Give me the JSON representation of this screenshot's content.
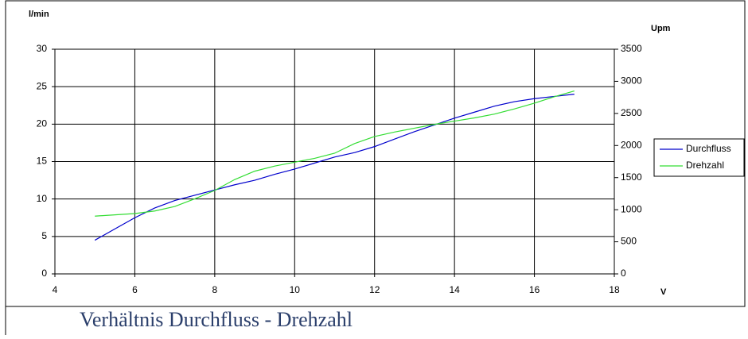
{
  "chart_data": {
    "type": "line",
    "title": "Verhältnis Durchfluss - Drehzahl",
    "y_label": "l/min",
    "y2_label": "Upm",
    "x_label": "V",
    "x": [
      5,
      5.5,
      6,
      6.5,
      7,
      7.5,
      8,
      8.5,
      9,
      9.5,
      10,
      10.5,
      11,
      11.5,
      12,
      12.5,
      13,
      13.5,
      14,
      14.5,
      15,
      15.5,
      16,
      16.5,
      17
    ],
    "series": [
      {
        "name": "Durchfluss",
        "color": "#0000cc",
        "axis": "y",
        "values": [
          4.5,
          6.0,
          7.5,
          8.8,
          9.8,
          10.5,
          11.2,
          11.9,
          12.5,
          13.3,
          14.0,
          14.8,
          15.6,
          16.2,
          17.0,
          18.0,
          19.0,
          19.9,
          20.8,
          21.6,
          22.4,
          23.0,
          23.4,
          23.7,
          24.0
        ]
      },
      {
        "name": "Drehzahl",
        "color": "#33dd33",
        "axis": "y2",
        "values": [
          900,
          920,
          940,
          980,
          1050,
          1170,
          1300,
          1470,
          1600,
          1680,
          1740,
          1800,
          1880,
          2030,
          2140,
          2210,
          2270,
          2330,
          2380,
          2430,
          2490,
          2570,
          2660,
          2760,
          2850
        ]
      }
    ],
    "xlim": [
      4,
      18
    ],
    "xticks": [
      4,
      6,
      8,
      10,
      12,
      14,
      16,
      18
    ],
    "ylim": [
      0,
      30
    ],
    "yticks": [
      0,
      5,
      10,
      15,
      20,
      25,
      30
    ],
    "y2lim": [
      0,
      3500
    ],
    "y2ticks": [
      0,
      500,
      1000,
      1500,
      2000,
      2500,
      3000,
      3500
    ],
    "grid": true,
    "legend": "right"
  }
}
